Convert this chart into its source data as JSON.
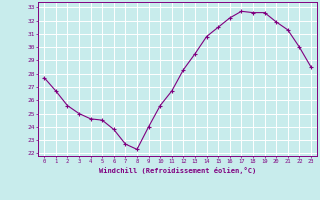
{
  "x": [
    0,
    1,
    2,
    3,
    4,
    5,
    6,
    7,
    8,
    9,
    10,
    11,
    12,
    13,
    14,
    15,
    16,
    17,
    18,
    19,
    20,
    21,
    22,
    23
  ],
  "y": [
    27.7,
    26.7,
    25.6,
    25.0,
    24.6,
    24.5,
    23.8,
    22.7,
    22.3,
    24.0,
    25.6,
    26.7,
    28.3,
    29.5,
    30.8,
    31.5,
    32.2,
    32.7,
    32.6,
    32.6,
    31.9,
    31.3,
    30.0,
    28.5
  ],
  "line_color": "#800080",
  "marker": "+",
  "bg_color": "#c8ecec",
  "grid_color": "#ffffff",
  "xlabel": "Windchill (Refroidissement éolien,°C)",
  "xtick_labels": [
    "0",
    "1",
    "2",
    "3",
    "4",
    "5",
    "6",
    "7",
    "8",
    "9",
    "10",
    "11",
    "12",
    "13",
    "14",
    "15",
    "16",
    "17",
    "18",
    "19",
    "20",
    "21",
    "22",
    "23"
  ],
  "ylim": [
    21.8,
    33.4
  ],
  "xlim": [
    -0.5,
    23.5
  ],
  "font_color": "#800080",
  "figsize": [
    3.2,
    2.0
  ],
  "dpi": 100
}
